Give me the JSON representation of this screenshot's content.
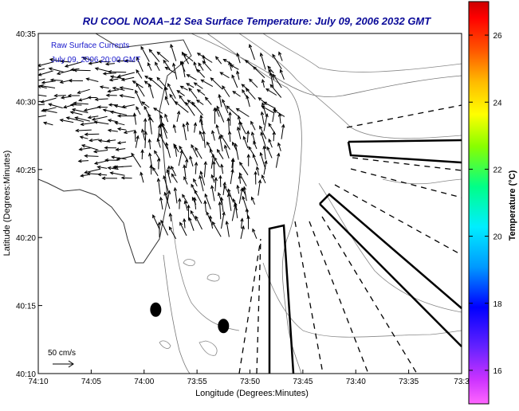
{
  "chart_data": {
    "type": "vector-field-map",
    "title": "RU COOL  NOAA–12  Sea Surface Temperature:  July 09, 2006 2032 GMT",
    "annotations": [
      "Raw Surface Currents",
      "July 09, 2006 20:00 GMT"
    ],
    "xlabel": "Longitude (Degrees:Minutes)",
    "ylabel": "Latitude (Degrees:Minutes)",
    "x_ticks": [
      "74:10",
      "74:05",
      "74:00",
      "73:55",
      "73:50",
      "73:45",
      "73:40",
      "73:35",
      "73:3"
    ],
    "y_ticks": [
      "40:35",
      "40:30",
      "40:25",
      "40:20",
      "40:15",
      "40:10"
    ],
    "xlim": [
      "74:10",
      "73:30"
    ],
    "ylim": [
      "40:10",
      "40:35"
    ],
    "scale_label": "50 cm/s",
    "colorbar": {
      "label": "Temperature (°C)",
      "ticks": [
        "26",
        "24",
        "22",
        "20",
        "18",
        "16"
      ],
      "range": [
        15,
        27
      ]
    },
    "markers": [
      {
        "shape": "filled-ellipse",
        "lon": "73:58.9",
        "lat": "40:14.7"
      },
      {
        "shape": "filled-ellipse",
        "lon": "73:52.5",
        "lat": "40:13.5"
      }
    ]
  }
}
